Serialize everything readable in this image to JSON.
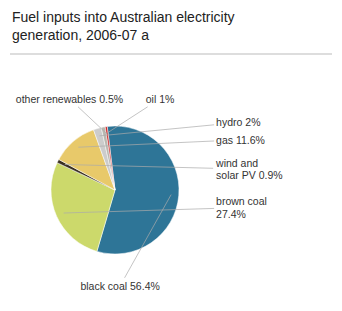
{
  "chart_data": {
    "type": "pie",
    "title": "Fuel inputs into Australian electricity\ngeneration, 2006-07 a",
    "categories": [
      "black coal 56.4%",
      "brown coal\n27.4%",
      "wind and\nsolar PV 0.9%",
      "gas 11.6%",
      "hydro 2%",
      "oil 1%",
      "other renewables 0.5%"
    ],
    "values": [
      56.4,
      27.4,
      0.9,
      11.6,
      2.0,
      1.0,
      0.5
    ],
    "colors": [
      "#2e7597",
      "#ccd96b",
      "#3a3020",
      "#e8c96a",
      "#cccccc",
      "#b8b8b0",
      "#cc2222"
    ]
  }
}
